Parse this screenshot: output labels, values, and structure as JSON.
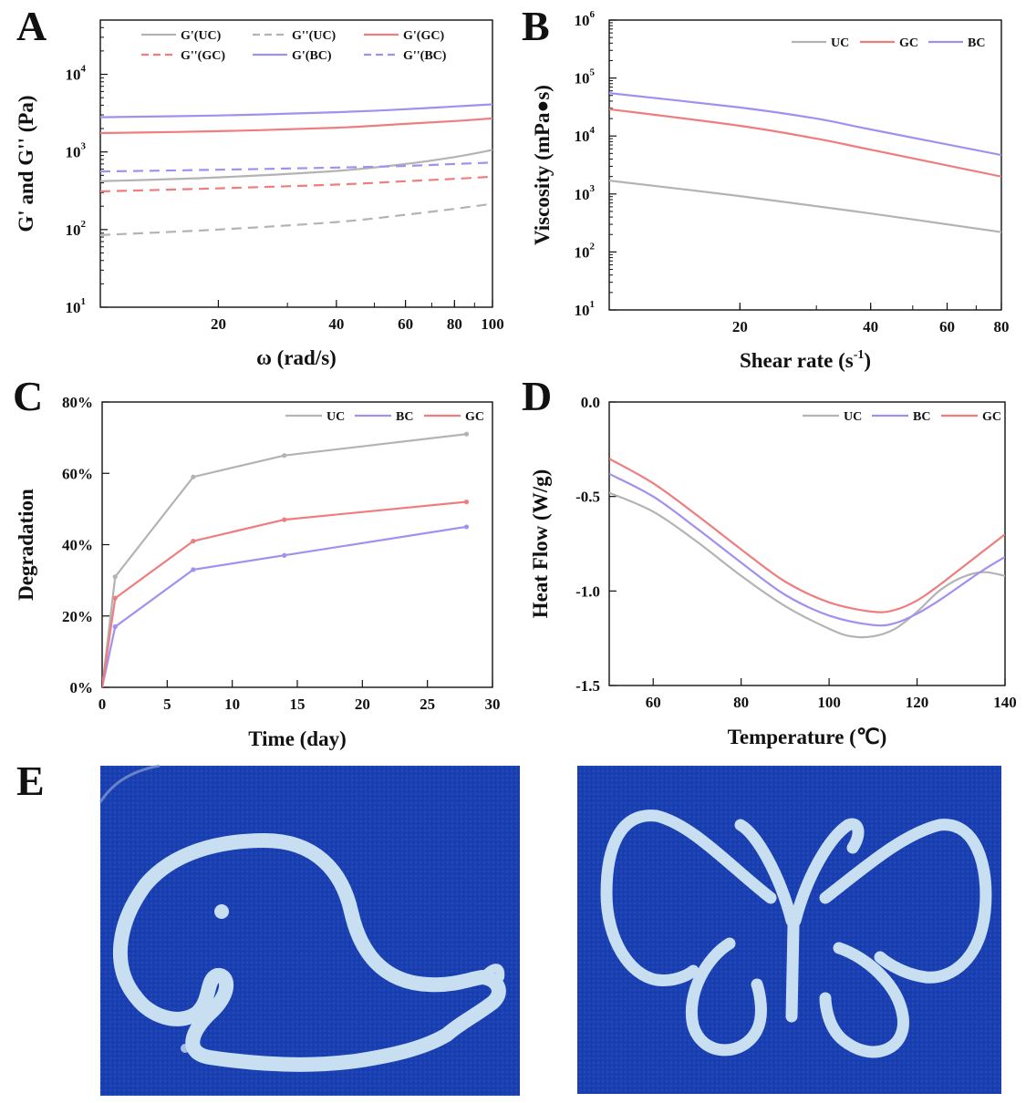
{
  "figure": {
    "panels": [
      {
        "letter": "A",
        "chart_index": 0
      },
      {
        "letter": "B",
        "chart_index": 1
      },
      {
        "letter": "C",
        "chart_index": 2
      },
      {
        "letter": "D",
        "chart_index": 3
      },
      {
        "letter": "E",
        "chart_index": null
      }
    ],
    "photos": [
      {
        "subject": "whale",
        "photo_bg": "#1a3fb0",
        "gel_color": "#c8dff2"
      },
      {
        "subject": "butterfly",
        "photo_bg": "#1a3fb0",
        "gel_color": "#c8dff2"
      }
    ]
  },
  "colors": {
    "UC": "#b3b3b3",
    "GC": "#ef7d7d",
    "BC": "#a38ff0"
  },
  "chart_data": [
    {
      "type": "line",
      "xlabel": "ω (rad/s)",
      "ylabel": "G' and G'' (Pa)",
      "xscale": "log",
      "yscale": "log",
      "xlim": [
        10,
        100
      ],
      "ylim": [
        10,
        50000
      ],
      "xticks": [
        20,
        40,
        60,
        80,
        100
      ],
      "yticks": [
        {
          "exp": 1
        },
        {
          "exp": 2
        },
        {
          "exp": 3
        },
        {
          "exp": 4
        }
      ],
      "legend_position": "top",
      "legend_columns": 3,
      "series": [
        {
          "name": "G'(UC)",
          "color": "#b3b3b3",
          "dash": "solid",
          "x": [
            10,
            20,
            40,
            60,
            80,
            100
          ],
          "y": [
            420,
            470,
            570,
            700,
            860,
            1060
          ]
        },
        {
          "name": "G''(UC)",
          "color": "#b3b3b3",
          "dash": "dashed",
          "x": [
            10,
            20,
            40,
            60,
            80,
            100
          ],
          "y": [
            85,
            100,
            125,
            155,
            185,
            215
          ]
        },
        {
          "name": "G'(GC)",
          "color": "#ef7d7d",
          "dash": "solid",
          "x": [
            10,
            20,
            40,
            60,
            80,
            100
          ],
          "y": [
            1750,
            1850,
            2050,
            2300,
            2500,
            2700
          ]
        },
        {
          "name": "G''(GC)",
          "color": "#ef7d7d",
          "dash": "dashed",
          "x": [
            10,
            20,
            40,
            60,
            80,
            100
          ],
          "y": [
            310,
            340,
            380,
            420,
            450,
            480
          ]
        },
        {
          "name": "G'(BC)",
          "color": "#a38ff0",
          "dash": "solid",
          "x": [
            10,
            20,
            40,
            60,
            80,
            100
          ],
          "y": [
            2800,
            2950,
            3250,
            3550,
            3850,
            4100
          ]
        },
        {
          "name": "G''(BC)",
          "color": "#a38ff0",
          "dash": "dashed",
          "x": [
            10,
            20,
            40,
            60,
            80,
            100
          ],
          "y": [
            560,
            590,
            630,
            660,
            700,
            730
          ]
        }
      ]
    },
    {
      "type": "line",
      "xlabel": "Shear rate (s",
      "xlabel_sup": "-1",
      "xlabel_tail": ")",
      "ylabel": "Viscosity (mPa●s)",
      "xscale": "log",
      "yscale": "log",
      "xlim": [
        10,
        80
      ],
      "ylim": [
        10,
        1000000
      ],
      "xticks": [
        20,
        40,
        60,
        80
      ],
      "yticks": [
        {
          "exp": 1
        },
        {
          "exp": 2
        },
        {
          "exp": 3
        },
        {
          "exp": 4
        },
        {
          "exp": 5
        },
        {
          "exp": 6
        }
      ],
      "legend_position": "top-right",
      "legend_columns": 3,
      "series": [
        {
          "name": "UC",
          "color": "#b3b3b3",
          "dash": "solid",
          "x": [
            10,
            20,
            40,
            80
          ],
          "y": [
            1700,
            920,
            460,
            220
          ]
        },
        {
          "name": "GC",
          "color": "#ef7d7d",
          "dash": "solid",
          "x": [
            10,
            20,
            30,
            40,
            80
          ],
          "y": [
            29000,
            15000,
            9000,
            5800,
            2000
          ]
        },
        {
          "name": "BC",
          "color": "#a38ff0",
          "dash": "solid",
          "x": [
            10,
            20,
            30,
            40,
            80
          ],
          "y": [
            55000,
            31000,
            20000,
            13000,
            4700
          ]
        }
      ]
    },
    {
      "type": "line",
      "xlabel": "Time (day)",
      "ylabel": "Degradation",
      "xscale": "linear",
      "yscale": "linear",
      "xlim": [
        0,
        30
      ],
      "ylim": [
        0,
        80
      ],
      "xticks": [
        0,
        5,
        10,
        15,
        20,
        25,
        30
      ],
      "yticks": [
        {
          "v": 0,
          "label": "0%"
        },
        {
          "v": 20,
          "label": "20%"
        },
        {
          "v": 40,
          "label": "40%"
        },
        {
          "v": 60,
          "label": "60%"
        },
        {
          "v": 80,
          "label": "80%"
        }
      ],
      "legend_position": "top-right",
      "legend_columns": 3,
      "markers": true,
      "series": [
        {
          "name": "UC",
          "color": "#b3b3b3",
          "dash": "solid",
          "x": [
            0,
            1,
            7,
            14,
            28
          ],
          "y": [
            0,
            31,
            59,
            65,
            71
          ]
        },
        {
          "name": "BC",
          "color": "#a38ff0",
          "dash": "solid",
          "x": [
            0,
            1,
            7,
            14,
            28
          ],
          "y": [
            0,
            17,
            33,
            37,
            45
          ]
        },
        {
          "name": "GC",
          "color": "#ef7d7d",
          "dash": "solid",
          "x": [
            0,
            1,
            7,
            14,
            28
          ],
          "y": [
            0,
            25,
            41,
            47,
            52
          ]
        }
      ]
    },
    {
      "type": "line",
      "xlabel": "Temperature (℃)",
      "ylabel": "Heat Flow (W/g)",
      "xscale": "linear",
      "yscale": "linear",
      "xlim": [
        50,
        140
      ],
      "ylim": [
        -1.5,
        0
      ],
      "xticks": [
        60,
        80,
        100,
        120,
        140
      ],
      "yticks": [
        {
          "v": 0,
          "label": "0.0"
        },
        {
          "v": -0.5,
          "label": "-0.5"
        },
        {
          "v": -1.0,
          "label": "-1.0"
        },
        {
          "v": -1.5,
          "label": "-1.5"
        }
      ],
      "legend_position": "top-right",
      "legend_columns": 3,
      "series": [
        {
          "name": "UC",
          "color": "#b3b3b3",
          "dash": "solid",
          "x": [
            50,
            60,
            70,
            80,
            90,
            100,
            105,
            110,
            115,
            120,
            125,
            130,
            135,
            140
          ],
          "y": [
            -0.48,
            -0.58,
            -0.74,
            -0.92,
            -1.08,
            -1.2,
            -1.24,
            -1.24,
            -1.2,
            -1.11,
            -1.0,
            -0.93,
            -0.9,
            -0.92
          ]
        },
        {
          "name": "BC",
          "color": "#a38ff0",
          "dash": "solid",
          "x": [
            50,
            60,
            70,
            80,
            90,
            100,
            110,
            115,
            120,
            125,
            130,
            135,
            140
          ],
          "y": [
            -0.38,
            -0.5,
            -0.67,
            -0.85,
            -1.02,
            -1.13,
            -1.18,
            -1.17,
            -1.12,
            -1.05,
            -0.97,
            -0.89,
            -0.82
          ]
        },
        {
          "name": "GC",
          "color": "#ef7d7d",
          "dash": "solid",
          "x": [
            50,
            60,
            70,
            80,
            90,
            100,
            110,
            115,
            120,
            125,
            130,
            135,
            140
          ],
          "y": [
            -0.3,
            -0.43,
            -0.6,
            -0.78,
            -0.95,
            -1.06,
            -1.11,
            -1.1,
            -1.05,
            -0.97,
            -0.88,
            -0.79,
            -0.7
          ]
        }
      ]
    }
  ]
}
